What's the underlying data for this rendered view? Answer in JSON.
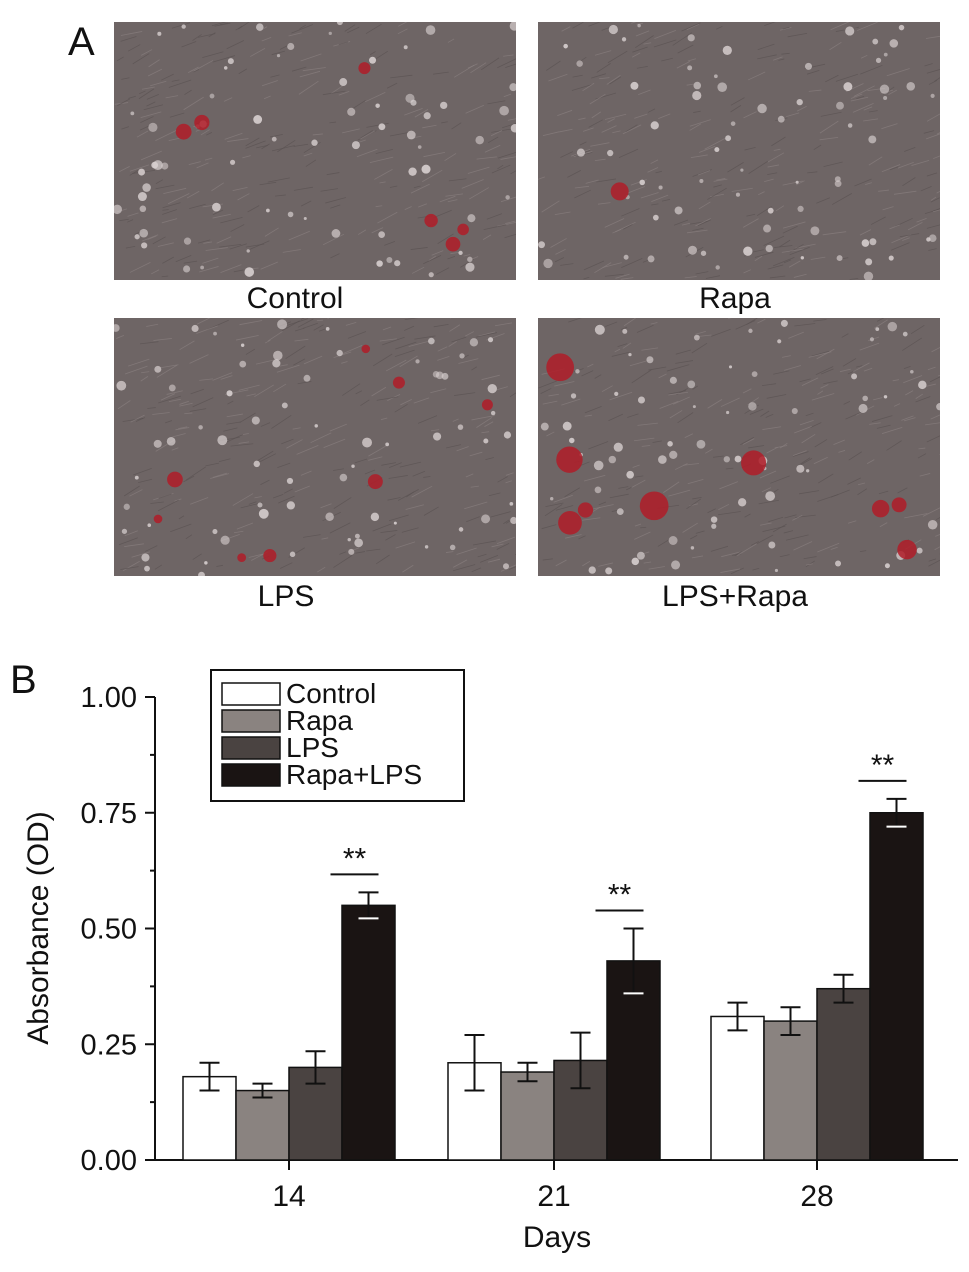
{
  "panel_a": {
    "letter": "A",
    "images": [
      {
        "label": "Control",
        "red_spots": 6
      },
      {
        "label": "Rapa",
        "red_spots": 1
      },
      {
        "label": "LPS",
        "red_spots": 8
      },
      {
        "label": "LPS+Rapa",
        "red_spots": 9
      }
    ]
  },
  "panel_b": {
    "letter": "B"
  },
  "colors": {
    "control": "#ffffff",
    "rapa": "#8a8380",
    "lps": "#4a4341",
    "rapa_lps": "#1a1413",
    "micro_bg": "#6e6565",
    "stain": "#b01c28"
  },
  "chart_data": {
    "type": "bar",
    "categories": [
      "14",
      "21",
      "28"
    ],
    "xlabel": "Days",
    "ylabel": "Absorbance (OD)",
    "ylim": [
      0,
      1
    ],
    "yticks": [
      "0.00",
      "0.25",
      "0.50",
      "0.75",
      "1.00"
    ],
    "grid": false,
    "legend_position": "top-left",
    "series": [
      {
        "name": "Control",
        "values": [
          0.18,
          0.21,
          0.31
        ],
        "errors": [
          0.03,
          0.06,
          0.03
        ],
        "color": "#ffffff"
      },
      {
        "name": "Rapa",
        "values": [
          0.15,
          0.19,
          0.3
        ],
        "errors": [
          0.015,
          0.02,
          0.03
        ],
        "color": "#8a8380"
      },
      {
        "name": "LPS",
        "values": [
          0.2,
          0.215,
          0.37
        ],
        "errors": [
          0.035,
          0.06,
          0.03
        ],
        "color": "#4a4341"
      },
      {
        "name": "Rapa+LPS",
        "values": [
          0.55,
          0.43,
          0.75
        ],
        "errors": [
          0.028,
          0.07,
          0.03
        ],
        "color": "#1a1413"
      }
    ],
    "annotations": [
      {
        "category": "14",
        "text": "**"
      },
      {
        "category": "21",
        "text": "**"
      },
      {
        "category": "28",
        "text": "**"
      }
    ]
  }
}
